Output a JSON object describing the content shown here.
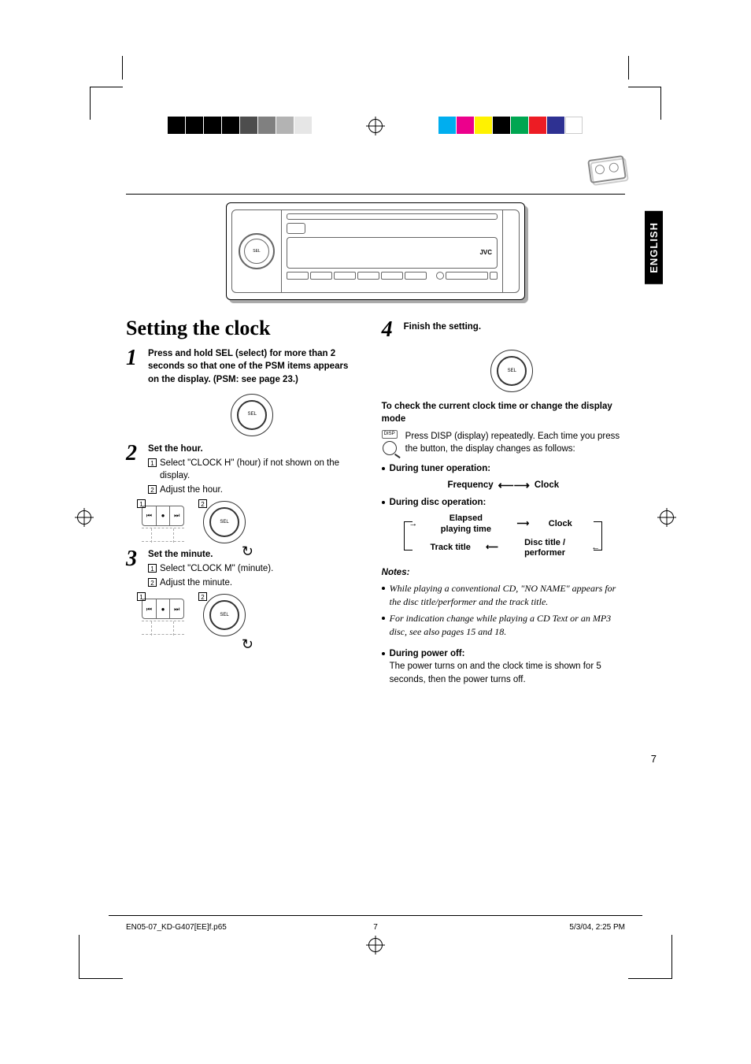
{
  "colorbars": {
    "left": [
      "#000000",
      "#000000",
      "#000000",
      "#000000",
      "#4d4d4d",
      "#808080",
      "#b3b3b3",
      "#e6e6e6"
    ],
    "right": [
      "#00aeef",
      "#ec008c",
      "#fff200",
      "#000000",
      "#00a651",
      "#ed1c24",
      "#2e3192",
      "#ffffff"
    ]
  },
  "language_tab": "ENGLISH",
  "radio_brand": "JVC",
  "title": "Setting the clock",
  "steps": [
    {
      "num": "1",
      "text": "Press and hold SEL (select) for more than 2 seconds so that one of the PSM items appears on the display. (PSM: see page 23.)"
    },
    {
      "num": "2",
      "heading": "Set the hour.",
      "subs": [
        {
          "n": "1",
          "t": "Select \"CLOCK H\" (hour) if not shown on the display."
        },
        {
          "n": "2",
          "t": "Adjust the hour."
        }
      ]
    },
    {
      "num": "3",
      "heading": "Set the minute.",
      "subs": [
        {
          "n": "1",
          "t": "Select \"CLOCK M\" (minute)."
        },
        {
          "n": "2",
          "t": "Adjust the minute."
        }
      ]
    }
  ],
  "right": {
    "step_num": "4",
    "step_text": "Finish the setting.",
    "check_heading": "To check the current clock time or change the display mode",
    "disp_label": "DISP",
    "disp_text": "Press DISP (display) repeatedly. Each time you press the button, the display changes as follows:",
    "tuner_label": "During tuner operation:",
    "tuner_flow": {
      "left": "Frequency",
      "right": "Clock"
    },
    "disc_label": "During disc operation:",
    "disc_flow": {
      "tl": "Elapsed playing time",
      "tr": "Clock",
      "bl": "Track title",
      "br": "Disc title / performer"
    },
    "notes_heading": "Notes:",
    "notes": [
      "While playing a conventional CD, \"NO NAME\" appears for the disc title/performer and the track title.",
      "For indication change while playing a CD Text or an MP3 disc, see also pages 15 and 18."
    ],
    "power_label": "During power off:",
    "power_text": "The power turns on and the clock time is shown for 5 seconds, then the power turns off."
  },
  "page_number": "7",
  "footer": {
    "file": "EN05-07_KD-G407[EE]f.p65",
    "page": "7",
    "timestamp": "5/3/04, 2:25 PM"
  }
}
